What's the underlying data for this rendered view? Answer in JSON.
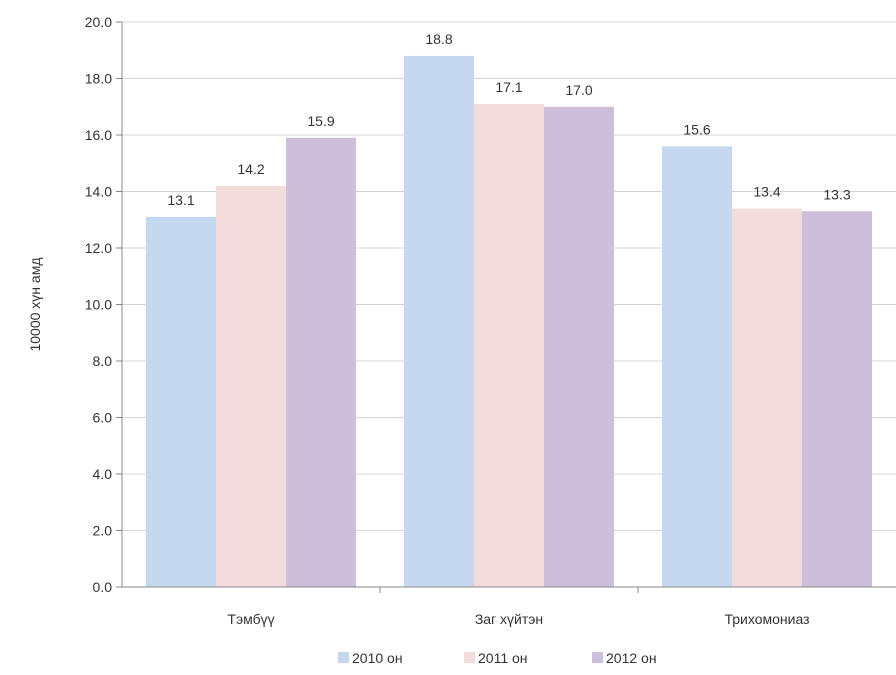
{
  "chart_data": {
    "type": "bar",
    "title": "",
    "xlabel": "",
    "ylabel": "10000 хүн амд",
    "ylim": [
      0,
      20
    ],
    "y_ticks": [
      "0.0",
      "2.0",
      "4.0",
      "6.0",
      "8.0",
      "10.0",
      "12.0",
      "14.0",
      "16.0",
      "18.0",
      "20.0"
    ],
    "categories": [
      "Тэмбүү",
      "Заг хүйтэн",
      "Трихомониаз"
    ],
    "series": [
      {
        "name": "2010 он",
        "values": [
          13.1,
          18.8,
          15.6
        ],
        "labels": [
          "13.1",
          "18.8",
          "15.6"
        ],
        "color": "#c6d8f0"
      },
      {
        "name": "2011 он",
        "values": [
          14.2,
          17.1,
          13.4
        ],
        "labels": [
          "14.2",
          "17.1",
          "13.4"
        ],
        "color": "#f3dcdc"
      },
      {
        "name": "2012 он",
        "values": [
          15.9,
          17.0,
          13.3
        ],
        "labels": [
          "15.9",
          "17.0",
          "13.3"
        ],
        "color": "#cdbfdc"
      }
    ],
    "grid": true,
    "legend_position": "bottom"
  }
}
